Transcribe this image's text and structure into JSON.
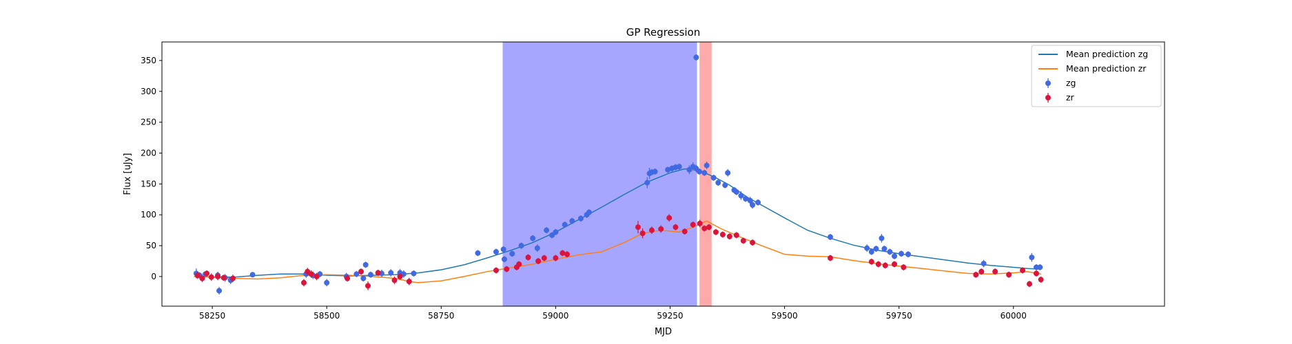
{
  "chart_data": {
    "type": "scatter",
    "title": "GP Regression",
    "xlabel": "MJD",
    "ylabel": "Flux [uJy]",
    "xlim": [
      58140,
      60330
    ],
    "ylim": [
      -48,
      380
    ],
    "x_ticks": [
      58250,
      58500,
      58750,
      59000,
      59250,
      59500,
      59750,
      60000
    ],
    "y_ticks": [
      0,
      50,
      100,
      150,
      200,
      250,
      300,
      350
    ],
    "legend_position": "top-right",
    "shaded_regions": [
      {
        "x0": 58885,
        "x1": 59308,
        "color": "#a6a6ff"
      },
      {
        "x0": 59315,
        "x1": 59340,
        "color": "#ffaaaa"
      }
    ],
    "series": [
      {
        "name": "Mean prediction zg",
        "kind": "line",
        "color": "#1f77b4",
        "points": [
          [
            58210,
            0
          ],
          [
            58250,
            -1
          ],
          [
            58300,
            -1
          ],
          [
            58350,
            2
          ],
          [
            58400,
            4
          ],
          [
            58450,
            4
          ],
          [
            58500,
            2
          ],
          [
            58550,
            1
          ],
          [
            58600,
            2
          ],
          [
            58650,
            3
          ],
          [
            58700,
            6
          ],
          [
            58750,
            11
          ],
          [
            58800,
            19
          ],
          [
            58850,
            30
          ],
          [
            58900,
            42
          ],
          [
            58950,
            55
          ],
          [
            59000,
            72
          ],
          [
            59050,
            92
          ],
          [
            59100,
            112
          ],
          [
            59150,
            133
          ],
          [
            59200,
            153
          ],
          [
            59250,
            168
          ],
          [
            59280,
            174
          ],
          [
            59300,
            175
          ],
          [
            59320,
            170
          ],
          [
            59350,
            160
          ],
          [
            59380,
            148
          ],
          [
            59420,
            128
          ],
          [
            59500,
            95
          ],
          [
            59550,
            75
          ],
          [
            59600,
            62
          ],
          [
            59650,
            51
          ],
          [
            59700,
            43
          ],
          [
            59750,
            37
          ],
          [
            59800,
            32
          ],
          [
            59850,
            27
          ],
          [
            59900,
            22
          ],
          [
            59950,
            18
          ],
          [
            60000,
            15
          ],
          [
            60030,
            13
          ],
          [
            60060,
            12
          ]
        ]
      },
      {
        "name": "Mean prediction zr",
        "kind": "line",
        "color": "#ff7f0e",
        "points": [
          [
            58210,
            0
          ],
          [
            58250,
            -1
          ],
          [
            58300,
            -3
          ],
          [
            58350,
            -4
          ],
          [
            58400,
            -2
          ],
          [
            58450,
            2
          ],
          [
            58500,
            3
          ],
          [
            58550,
            2
          ],
          [
            58600,
            0
          ],
          [
            58650,
            -3
          ],
          [
            58680,
            -8
          ],
          [
            58700,
            -10
          ],
          [
            58750,
            -7
          ],
          [
            58800,
            0
          ],
          [
            58850,
            8
          ],
          [
            58900,
            14
          ],
          [
            58950,
            20
          ],
          [
            59000,
            28
          ],
          [
            59050,
            35
          ],
          [
            59100,
            40
          ],
          [
            59150,
            55
          ],
          [
            59190,
            70
          ],
          [
            59230,
            75
          ],
          [
            59270,
            72
          ],
          [
            59300,
            80
          ],
          [
            59330,
            90
          ],
          [
            59360,
            78
          ],
          [
            59400,
            65
          ],
          [
            59450,
            50
          ],
          [
            59500,
            36
          ],
          [
            59550,
            33
          ],
          [
            59600,
            32
          ],
          [
            59650,
            26
          ],
          [
            59700,
            21
          ],
          [
            59750,
            17
          ],
          [
            59800,
            13
          ],
          [
            59850,
            9
          ],
          [
            59900,
            5
          ],
          [
            59950,
            4
          ],
          [
            60000,
            6
          ],
          [
            60030,
            8
          ],
          [
            60060,
            4
          ]
        ]
      },
      {
        "name": "zg",
        "kind": "errorbar",
        "color": "#4169e1",
        "points": [
          [
            58215,
            5,
            8
          ],
          [
            58222,
            2,
            5
          ],
          [
            58235,
            4,
            5
          ],
          [
            58262,
            2,
            6
          ],
          [
            58265,
            -23,
            6
          ],
          [
            58278,
            -2,
            6
          ],
          [
            58290,
            -6,
            6
          ],
          [
            58338,
            3,
            4
          ],
          [
            58455,
            4,
            6
          ],
          [
            58470,
            2,
            6
          ],
          [
            58485,
            4,
            5
          ],
          [
            58500,
            -10,
            6
          ],
          [
            58543,
            0,
            6
          ],
          [
            58565,
            4,
            5
          ],
          [
            58580,
            -3,
            5
          ],
          [
            58585,
            19,
            5
          ],
          [
            58596,
            3,
            5
          ],
          [
            58620,
            5,
            6
          ],
          [
            58640,
            6,
            6
          ],
          [
            58660,
            6,
            6
          ],
          [
            58668,
            4,
            6
          ],
          [
            58690,
            5,
            5
          ],
          [
            58830,
            38,
            5
          ],
          [
            58870,
            40,
            5
          ],
          [
            58886,
            44,
            5
          ],
          [
            58888,
            28,
            5
          ],
          [
            58905,
            37,
            5
          ],
          [
            58925,
            50,
            5
          ],
          [
            58950,
            62,
            5
          ],
          [
            58960,
            46,
            6
          ],
          [
            58980,
            75,
            5
          ],
          [
            58992,
            67,
            5
          ],
          [
            59000,
            72,
            5
          ],
          [
            59020,
            84,
            5
          ],
          [
            59036,
            90,
            5
          ],
          [
            59055,
            94,
            5
          ],
          [
            59068,
            100,
            5
          ],
          [
            59073,
            104,
            5
          ],
          [
            59200,
            152,
            9
          ],
          [
            59205,
            167,
            9
          ],
          [
            59210,
            169,
            5
          ],
          [
            59217,
            170,
            5
          ],
          [
            59245,
            173,
            5
          ],
          [
            59254,
            175,
            5
          ],
          [
            59262,
            177,
            5
          ],
          [
            59270,
            178,
            5
          ],
          [
            59292,
            173,
            7
          ],
          [
            59300,
            178,
            7
          ],
          [
            59307,
            175,
            6
          ],
          [
            59314,
            170,
            5
          ],
          [
            59325,
            168,
            5
          ],
          [
            59330,
            180,
            6
          ],
          [
            59345,
            160,
            5
          ],
          [
            59355,
            152,
            5
          ],
          [
            59370,
            148,
            5
          ],
          [
            59376,
            168,
            6
          ],
          [
            59390,
            140,
            5
          ],
          [
            59395,
            137,
            5
          ],
          [
            59405,
            131,
            7
          ],
          [
            59415,
            126,
            5
          ],
          [
            59425,
            123,
            6
          ],
          [
            59430,
            116,
            6
          ],
          [
            59442,
            120,
            5
          ],
          [
            59307,
            355,
            5
          ],
          [
            59600,
            64,
            5
          ],
          [
            59680,
            46,
            6
          ],
          [
            59690,
            40,
            5
          ],
          [
            59700,
            45,
            5
          ],
          [
            59712,
            62,
            7
          ],
          [
            59718,
            45,
            5
          ],
          [
            59730,
            40,
            5
          ],
          [
            59740,
            33,
            5
          ],
          [
            59755,
            37,
            5
          ],
          [
            59770,
            36,
            5
          ],
          [
            59935,
            21,
            6
          ],
          [
            60040,
            31,
            7
          ],
          [
            60050,
            15,
            5
          ],
          [
            60058,
            15,
            5
          ]
        ]
      },
      {
        "name": "zr",
        "kind": "errorbar",
        "color": "#dc143c",
        "points": [
          [
            58218,
            2,
            6
          ],
          [
            58228,
            -3,
            6
          ],
          [
            58238,
            5,
            5
          ],
          [
            58248,
            -1,
            6
          ],
          [
            58262,
            0,
            6
          ],
          [
            58275,
            -2,
            5
          ],
          [
            58295,
            -3,
            6
          ],
          [
            58450,
            -10,
            6
          ],
          [
            58458,
            8,
            6
          ],
          [
            58466,
            4,
            6
          ],
          [
            58478,
            0,
            6
          ],
          [
            58545,
            -3,
            5
          ],
          [
            58575,
            8,
            5
          ],
          [
            58590,
            -15,
            7
          ],
          [
            58612,
            6,
            5
          ],
          [
            58648,
            -6,
            6
          ],
          [
            58660,
            0,
            5
          ],
          [
            58680,
            -8,
            6
          ],
          [
            58870,
            10,
            5
          ],
          [
            58893,
            12,
            5
          ],
          [
            58915,
            15,
            5
          ],
          [
            58920,
            20,
            5
          ],
          [
            58940,
            31,
            5
          ],
          [
            58962,
            25,
            5
          ],
          [
            58975,
            30,
            5
          ],
          [
            59000,
            30,
            5
          ],
          [
            59015,
            38,
            5
          ],
          [
            59025,
            36,
            5
          ],
          [
            59180,
            80,
            10
          ],
          [
            59190,
            70,
            8
          ],
          [
            59210,
            75,
            6
          ],
          [
            59230,
            77,
            6
          ],
          [
            59248,
            95,
            6
          ],
          [
            59262,
            80,
            5
          ],
          [
            59282,
            73,
            5
          ],
          [
            59300,
            84,
            5
          ],
          [
            59315,
            86,
            6
          ],
          [
            59325,
            78,
            5
          ],
          [
            59335,
            80,
            5
          ],
          [
            59350,
            72,
            5
          ],
          [
            59365,
            68,
            5
          ],
          [
            59380,
            65,
            5
          ],
          [
            59395,
            67,
            5
          ],
          [
            59410,
            58,
            5
          ],
          [
            59430,
            55,
            5
          ],
          [
            59600,
            30,
            5
          ],
          [
            59690,
            24,
            5
          ],
          [
            59705,
            20,
            5
          ],
          [
            59720,
            18,
            5
          ],
          [
            59740,
            20,
            5
          ],
          [
            59760,
            15,
            5
          ],
          [
            59918,
            3,
            5
          ],
          [
            59930,
            8,
            5
          ],
          [
            59960,
            8,
            5
          ],
          [
            59990,
            3,
            5
          ],
          [
            60020,
            10,
            5
          ],
          [
            60035,
            -12,
            5
          ],
          [
            60050,
            5,
            5
          ],
          [
            60060,
            -5,
            5
          ]
        ]
      }
    ]
  }
}
